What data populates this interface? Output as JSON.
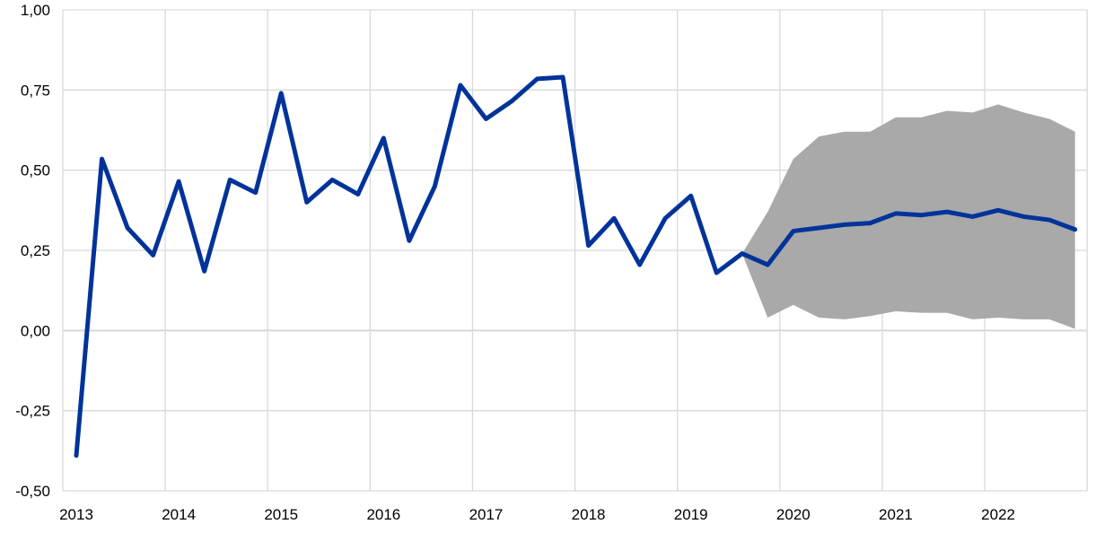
{
  "chart_data": {
    "type": "line",
    "title": "",
    "xlabel": "",
    "ylabel": "",
    "ylim": [
      -0.5,
      1.0
    ],
    "yticks": [
      "-0,50",
      "-0,25",
      "0,00",
      "0,25",
      "0,50",
      "0,75",
      "1,00"
    ],
    "ytick_values": [
      -0.5,
      -0.25,
      0,
      0.25,
      0.5,
      0.75,
      1.0
    ],
    "xticks": [
      "2013",
      "2014",
      "2015",
      "2016",
      "2017",
      "2018",
      "2019",
      "2020",
      "2021",
      "2022"
    ],
    "grid": true,
    "colors": {
      "line": "#003399",
      "band": "#a9a9a9",
      "grid": "#d9d9d9"
    },
    "series": [
      {
        "type": "line",
        "start": "2013Q1",
        "frequency": "quarterly",
        "values": [
          -0.39,
          0.535,
          0.32,
          0.235,
          0.465,
          0.185,
          0.47,
          0.43,
          0.74,
          0.4,
          0.47,
          0.425,
          0.6,
          0.28,
          0.45,
          0.765,
          0.66,
          0.715,
          0.785,
          0.79,
          0.265,
          0.35,
          0.205,
          0.35,
          0.42,
          0.18,
          0.24,
          0.205,
          0.31,
          0.32,
          0.33,
          0.335,
          0.365,
          0.36,
          0.37,
          0.355,
          0.375,
          0.355,
          0.345,
          0.315
        ]
      },
      {
        "type": "band",
        "start": "2019Q3",
        "frequency": "quarterly",
        "upper": [
          0.24,
          0.37,
          0.535,
          0.605,
          0.62,
          0.62,
          0.665,
          0.665,
          0.685,
          0.68,
          0.705,
          0.68,
          0.66,
          0.62
        ],
        "lower": [
          0.24,
          0.04,
          0.08,
          0.04,
          0.035,
          0.045,
          0.06,
          0.055,
          0.055,
          0.035,
          0.04,
          0.035,
          0.035,
          0.005
        ]
      }
    ]
  }
}
